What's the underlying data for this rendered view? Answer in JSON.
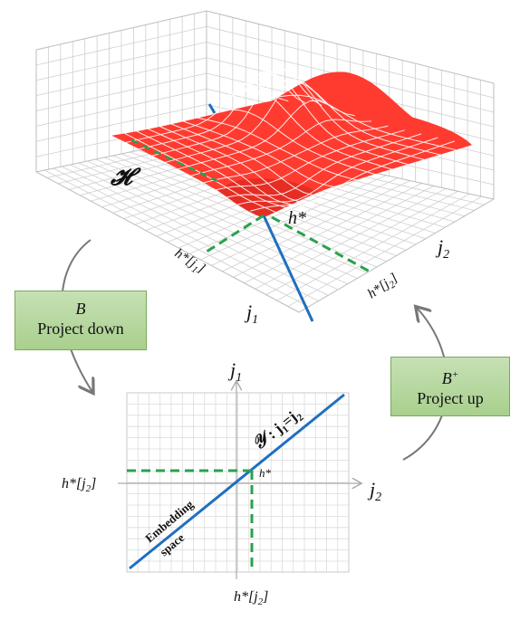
{
  "surface": {
    "label": "𝓗",
    "peak_label": "h*",
    "axis_labels": {
      "j1": "j",
      "j1_sub": "1",
      "j2": "j",
      "j2_sub": "2"
    },
    "proj_j1": "h*[j",
    "proj_j1_sub": "1",
    "proj_j2": "h*[j",
    "proj_j2_sub": "2",
    "bracket": "]",
    "colors": {
      "surface": "#ff3b30",
      "grid": "#c8c8c8",
      "axis": "#1f6fbf",
      "proj": "#2aa14a"
    }
  },
  "project_down": {
    "symbol": "B",
    "label": "Project down"
  },
  "project_up": {
    "symbol": "B",
    "symbol_sup": "+",
    "label": "Project up"
  },
  "plane": {
    "y_axis": "j",
    "y_axis_sub": "1",
    "x_axis": "j",
    "x_axis_sub": "2",
    "left_label": "h*[j",
    "left_sub": "2",
    "bottom_label": "h*[j",
    "bottom_sub": "2",
    "bracket": "]",
    "point_label": "h*",
    "line_label_main": "𝒴",
    "line_label_eq": " : j",
    "line_label_sub1": "1",
    "line_label_eq2": "=j",
    "line_label_sub2": "2",
    "embedding_1": "Embedding",
    "embedding_2": "space",
    "colors": {
      "line": "#1f6fbf",
      "proj": "#2aa14a",
      "grid": "#d6d6d6"
    }
  }
}
